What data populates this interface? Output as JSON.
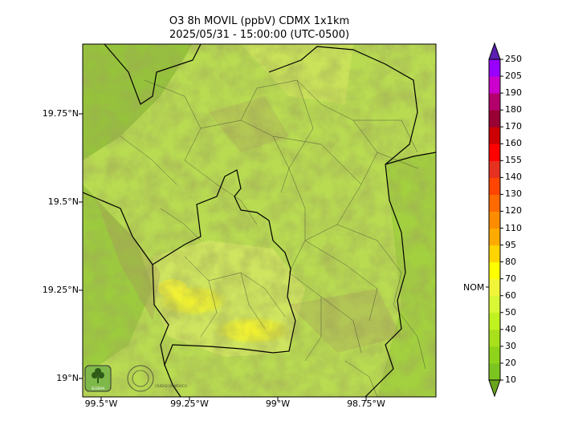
{
  "title": {
    "line1": "O3 8h MOVIL (ppbV) CDMX 1x1km",
    "line2": "2025/05/31 - 15:00:00 (UTC-0500)"
  },
  "axes": {
    "lat_labels": [
      "19.75°N",
      "19.5°N",
      "19.25°N",
      "19°N"
    ],
    "lon_labels": [
      "99.5°W",
      "99.25°W",
      "99°W",
      "98.75°W"
    ]
  },
  "colorbar": {
    "levels": [
      10,
      20,
      30,
      40,
      50,
      60,
      70,
      80,
      95,
      110,
      120,
      130,
      140,
      155,
      160,
      170,
      180,
      190,
      205,
      250
    ],
    "labels": [
      "10",
      "20",
      "30",
      "40",
      "50",
      "60",
      "70",
      "80",
      "95",
      "110",
      "120",
      "130",
      "140",
      "155",
      "160",
      "170",
      "180",
      "190",
      "205",
      "250"
    ],
    "colors": [
      "#6aa51e",
      "#7cc41f",
      "#8fd41a",
      "#a8e01c",
      "#bff21f",
      "#d9f735",
      "#f0f53a",
      "#ffff00",
      "#ffd400",
      "#ffaa00",
      "#ff8c00",
      "#ff6a00",
      "#ff4500",
      "#e63020",
      "#ff0000",
      "#cc0000",
      "#990033",
      "#b3006b",
      "#cc00cc",
      "#9900ff",
      "#5a1fb0"
    ],
    "nom_label": "NOM"
  },
  "logos": {
    "left": "SEDEMA",
    "right": "CIUDAD DE MÉXICO"
  }
}
